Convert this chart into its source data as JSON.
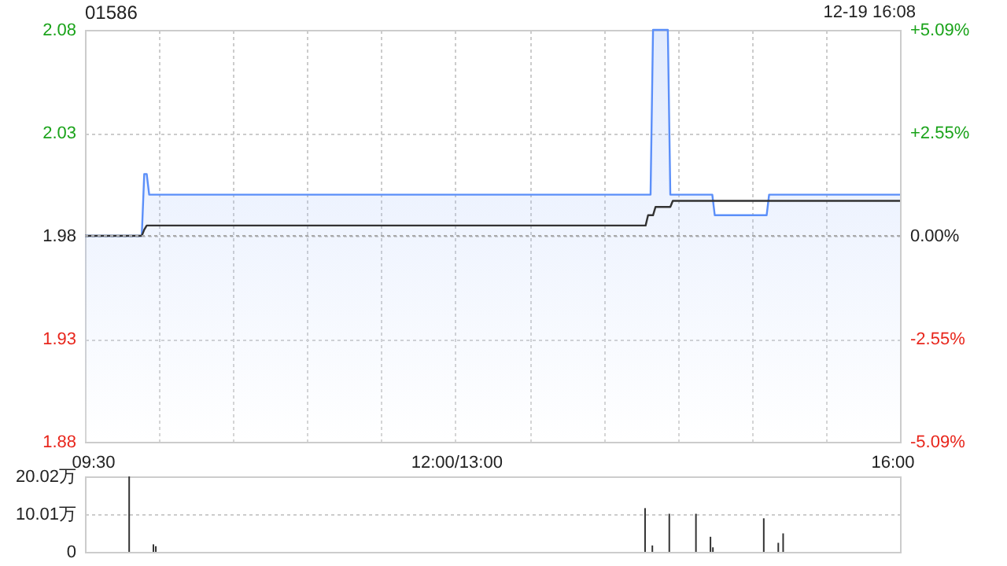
{
  "chart_data": [
    {
      "type": "line",
      "title": "01586",
      "annotations": [
        "12-19 16:08"
      ],
      "tick_labels": "y",
      "categories": [
        null,
        null,
        null,
        null,
        null,
        null,
        null,
        null,
        null,
        null,
        null,
        null,
        null,
        null,
        null,
        null,
        null,
        null,
        null,
        null,
        null,
        null,
        null,
        null,
        null,
        null,
        null,
        null,
        null,
        null,
        null,
        null,
        null,
        null,
        null,
        null,
        null,
        null,
        null,
        null,
        null,
        null,
        null,
        null,
        null,
        null,
        null,
        null,
        null,
        null,
        null,
        null,
        null,
        null,
        null,
        null,
        null,
        null,
        null,
        null,
        null,
        null,
        null,
        null,
        null,
        null,
        null,
        null,
        null,
        null,
        null,
        null,
        null,
        null,
        null,
        null,
        null,
        null,
        null,
        null,
        null,
        null,
        null,
        null,
        null,
        null,
        null,
        null,
        null,
        null,
        null,
        null,
        null,
        null,
        null,
        null,
        null,
        null,
        null,
        null,
        null,
        null,
        null,
        null,
        null,
        null,
        null,
        null,
        null,
        null,
        null,
        null,
        null,
        null,
        null,
        null,
        null,
        null,
        null,
        null,
        null,
        null,
        null,
        null,
        null,
        null,
        null,
        null,
        null,
        null,
        null,
        null,
        null,
        null,
        null,
        null,
        null,
        null,
        null,
        null,
        null,
        null,
        null,
        null,
        null,
        null,
        null,
        null,
        null,
        null,
        null,
        null,
        null,
        null,
        null,
        null,
        null,
        null,
        null,
        null,
        null,
        null,
        null,
        null,
        null,
        null,
        null,
        null,
        null,
        null,
        null,
        null,
        null,
        null,
        null,
        null,
        null,
        null,
        null,
        null,
        null,
        null,
        null,
        null,
        null,
        null,
        null,
        null,
        null,
        null,
        null,
        null,
        null,
        null,
        null,
        null,
        null,
        null,
        null,
        null,
        null,
        null,
        null,
        null,
        null,
        null,
        null,
        null,
        null,
        null,
        null,
        null,
        null,
        null,
        null,
        null,
        null,
        null,
        null,
        null,
        null,
        null,
        null,
        null,
        null,
        null,
        null,
        null,
        null,
        null,
        null,
        null,
        null,
        null,
        null,
        null,
        null,
        null,
        null,
        null,
        null,
        null,
        null,
        null,
        null,
        null,
        null,
        null,
        null,
        null,
        null,
        null,
        null,
        null,
        null,
        null,
        null,
        null,
        null,
        null,
        null,
        null,
        null,
        null,
        null,
        null,
        null,
        null,
        null,
        null,
        null,
        null,
        null,
        null,
        null,
        null,
        null,
        null,
        null,
        null,
        null,
        null,
        null,
        null,
        null,
        null,
        null,
        null,
        null,
        null,
        null,
        null,
        null,
        null,
        null,
        null,
        null,
        null,
        null,
        null,
        null,
        null,
        null,
        null,
        null,
        null,
        null,
        null,
        null,
        null,
        null,
        null,
        null,
        null,
        null,
        null,
        null,
        null,
        null,
        null,
        null,
        null,
        null,
        null,
        null,
        null,
        null,
        null,
        null,
        null,
        null
      ],
      "ylim": [
        1.88,
        2.08
      ],
      "yticks": [
        1.88,
        1.93,
        1.98,
        2.03,
        2.08
      ],
      "y2lim": [
        -5.09,
        5.09
      ],
      "y2ticks": [
        {
          "value": -5.09,
          "label": "-5.09%"
        },
        {
          "value": -2.55,
          "label": "-2.55%"
        },
        {
          "value": 0,
          "label": "0.00%"
        },
        {
          "value": 2.55,
          "label": "+2.55%"
        },
        {
          "value": 5.09,
          "label": "+5.09%"
        }
      ],
      "grid": true,
      "ref_lines": [
        {
          "axis": "y",
          "value": 1.98,
          "line_style": "dotted",
          "color": "#aaaaaa"
        }
      ],
      "series": [
        {
          "type": "area",
          "color": "#5b8ff9",
          "values": [
            1.98,
            1.98,
            1.98,
            1.98,
            1.98,
            1.98,
            1.98,
            1.98,
            1.98,
            1.98,
            1.98,
            1.98,
            1.98,
            1.98,
            1.98,
            1.98,
            1.98,
            1.98,
            1.98,
            1.98,
            1.98,
            1.98,
            1.98,
            1.98,
            2.01,
            2.01,
            2.0,
            2.0,
            2.0,
            2.0,
            2.0,
            2.0,
            2.0,
            2.0,
            2.0,
            2.0,
            2.0,
            2.0,
            2.0,
            2.0,
            2.0,
            2.0,
            2.0,
            2.0,
            2.0,
            2.0,
            2.0,
            2.0,
            2.0,
            2.0,
            2.0,
            2.0,
            2.0,
            2.0,
            2.0,
            2.0,
            2.0,
            2.0,
            2.0,
            2.0,
            2.0,
            2.0,
            2.0,
            2.0,
            2.0,
            2.0,
            2.0,
            2.0,
            2.0,
            2.0,
            2.0,
            2.0,
            2.0,
            2.0,
            2.0,
            2.0,
            2.0,
            2.0,
            2.0,
            2.0,
            2.0,
            2.0,
            2.0,
            2.0,
            2.0,
            2.0,
            2.0,
            2.0,
            2.0,
            2.0,
            2.0,
            2.0,
            2.0,
            2.0,
            2.0,
            2.0,
            2.0,
            2.0,
            2.0,
            2.0,
            2.0,
            2.0,
            2.0,
            2.0,
            2.0,
            2.0,
            2.0,
            2.0,
            2.0,
            2.0,
            2.0,
            2.0,
            2.0,
            2.0,
            2.0,
            2.0,
            2.0,
            2.0,
            2.0,
            2.0,
            2.0,
            2.0,
            2.0,
            2.0,
            2.0,
            2.0,
            2.0,
            2.0,
            2.0,
            2.0,
            2.0,
            2.0,
            2.0,
            2.0,
            2.0,
            2.0,
            2.0,
            2.0,
            2.0,
            2.0,
            2.0,
            2.0,
            2.0,
            2.0,
            2.0,
            2.0,
            2.0,
            2.0,
            2.0,
            2.0,
            2.0,
            2.0,
            2.0,
            2.0,
            2.0,
            2.0,
            2.0,
            2.0,
            2.0,
            2.0,
            2.0,
            2.0,
            2.0,
            2.0,
            2.0,
            2.0,
            2.0,
            2.0,
            2.0,
            2.0,
            2.0,
            2.0,
            2.0,
            2.0,
            2.0,
            2.0,
            2.0,
            2.0,
            2.0,
            2.0,
            2.0,
            2.0,
            2.0,
            2.0,
            2.0,
            2.0,
            2.0,
            2.0,
            2.0,
            2.0,
            2.0,
            2.0,
            2.0,
            2.0,
            2.0,
            2.0,
            2.0,
            2.0,
            2.0,
            2.0,
            2.0,
            2.0,
            2.0,
            2.0,
            2.0,
            2.0,
            2.0,
            2.0,
            2.0,
            2.0,
            2.0,
            2.0,
            2.0,
            2.0,
            2.0,
            2.0,
            2.0,
            2.0,
            2.0,
            2.0,
            2.0,
            2.0,
            2.0,
            2.0,
            2.0,
            2.0,
            2.0,
            2.0,
            2.0,
            2.0,
            2.08,
            2.08,
            2.08,
            2.08,
            2.08,
            2.08,
            2.08,
            2.0,
            2.0,
            2.0,
            2.0,
            2.0,
            2.0,
            2.0,
            2.0,
            2.0,
            2.0,
            2.0,
            2.0,
            2.0,
            2.0,
            2.0,
            2.0,
            2.0,
            2.0,
            1.99,
            1.99,
            1.99,
            1.99,
            1.99,
            1.99,
            1.99,
            1.99,
            1.99,
            1.99,
            1.99,
            1.99,
            1.99,
            1.99,
            1.99,
            1.99,
            1.99,
            1.99,
            1.99,
            1.99,
            1.99,
            1.99,
            2.0,
            2.0,
            2.0,
            2.0,
            2.0,
            2.0,
            2.0,
            2.0,
            2.0,
            2.0,
            2.0,
            2.0,
            2.0,
            2.0,
            2.0,
            2.0,
            2.0,
            2.0,
            2.0,
            2.0,
            2.0,
            2.0,
            2.0,
            2.0,
            2.0,
            2.0,
            2.0,
            2.0,
            2.0,
            2.0,
            2.0,
            2.0,
            2.0,
            2.0,
            2.0,
            2.0,
            2.0,
            2.0,
            2.0,
            2.0,
            2.0,
            2.0,
            2.0,
            2.0,
            2.0,
            2.0,
            2.0,
            2.0,
            2.0,
            2.0,
            2.0,
            2.0,
            2.0,
            2.0
          ]
        },
        {
          "color": "#333333",
          "values": [
            1.98,
            1.98,
            1.98,
            1.98,
            1.98,
            1.98,
            1.98,
            1.98,
            1.98,
            1.98,
            1.98,
            1.98,
            1.98,
            1.98,
            1.98,
            1.98,
            1.98,
            1.98,
            1.98,
            1.98,
            1.98,
            1.98,
            1.98,
            1.98,
            1.983,
            1.985,
            1.985,
            1.985,
            1.985,
            1.985,
            1.985,
            1.985,
            1.985,
            1.985,
            1.985,
            1.985,
            1.985,
            1.985,
            1.985,
            1.985,
            1.985,
            1.985,
            1.985,
            1.985,
            1.985,
            1.985,
            1.985,
            1.985,
            1.985,
            1.985,
            1.985,
            1.985,
            1.985,
            1.985,
            1.985,
            1.985,
            1.985,
            1.985,
            1.985,
            1.985,
            1.985,
            1.985,
            1.985,
            1.985,
            1.985,
            1.985,
            1.985,
            1.985,
            1.985,
            1.985,
            1.985,
            1.985,
            1.985,
            1.985,
            1.985,
            1.985,
            1.985,
            1.985,
            1.985,
            1.985,
            1.985,
            1.985,
            1.985,
            1.985,
            1.985,
            1.985,
            1.985,
            1.985,
            1.985,
            1.985,
            1.985,
            1.985,
            1.985,
            1.985,
            1.985,
            1.985,
            1.985,
            1.985,
            1.985,
            1.985,
            1.985,
            1.985,
            1.985,
            1.985,
            1.985,
            1.985,
            1.985,
            1.985,
            1.985,
            1.985,
            1.985,
            1.985,
            1.985,
            1.985,
            1.985,
            1.985,
            1.985,
            1.985,
            1.985,
            1.985,
            1.985,
            1.985,
            1.985,
            1.985,
            1.985,
            1.985,
            1.985,
            1.985,
            1.985,
            1.985,
            1.985,
            1.985,
            1.985,
            1.985,
            1.985,
            1.985,
            1.985,
            1.985,
            1.985,
            1.985,
            1.985,
            1.985,
            1.985,
            1.985,
            1.985,
            1.985,
            1.985,
            1.985,
            1.985,
            1.985,
            1.985,
            1.985,
            1.985,
            1.985,
            1.985,
            1.985,
            1.985,
            1.985,
            1.985,
            1.985,
            1.985,
            1.985,
            1.985,
            1.985,
            1.985,
            1.985,
            1.985,
            1.985,
            1.985,
            1.985,
            1.985,
            1.985,
            1.985,
            1.985,
            1.985,
            1.985,
            1.985,
            1.985,
            1.985,
            1.985,
            1.985,
            1.985,
            1.985,
            1.985,
            1.985,
            1.985,
            1.985,
            1.985,
            1.985,
            1.985,
            1.985,
            1.985,
            1.985,
            1.985,
            1.985,
            1.985,
            1.985,
            1.985,
            1.985,
            1.985,
            1.985,
            1.985,
            1.985,
            1.985,
            1.985,
            1.985,
            1.985,
            1.985,
            1.985,
            1.985,
            1.985,
            1.985,
            1.985,
            1.985,
            1.985,
            1.985,
            1.985,
            1.985,
            1.985,
            1.985,
            1.985,
            1.985,
            1.985,
            1.985,
            1.985,
            1.985,
            1.985,
            1.985,
            1.99,
            1.99,
            1.99,
            1.994,
            1.994,
            1.994,
            1.994,
            1.994,
            1.994,
            1.994,
            1.997,
            1.997,
            1.997,
            1.997,
            1.997,
            1.997,
            1.997,
            1.997,
            1.997,
            1.997,
            1.997,
            1.997,
            1.997,
            1.997,
            1.997,
            1.997,
            1.997,
            1.997,
            1.997,
            1.997,
            1.997,
            1.997,
            1.997,
            1.997,
            1.997,
            1.997,
            1.997,
            1.997,
            1.997,
            1.997,
            1.997,
            1.997,
            1.997,
            1.997,
            1.997,
            1.997,
            1.997,
            1.997,
            1.997,
            1.997,
            1.997,
            1.997,
            1.997,
            1.997,
            1.997,
            1.997,
            1.997,
            1.997,
            1.997,
            1.997,
            1.997,
            1.997,
            1.997,
            1.997,
            1.997,
            1.997,
            1.997,
            1.997,
            1.997,
            1.997,
            1.997,
            1.997,
            1.997,
            1.997,
            1.997,
            1.997,
            1.997,
            1.997,
            1.997,
            1.997,
            1.997,
            1.997,
            1.997,
            1.997,
            1.997,
            1.997,
            1.997,
            1.997,
            1.997,
            1.997,
            1.997,
            1.997,
            1.997,
            1.997,
            1.997,
            1.997,
            1.997,
            1.997,
            1.997,
            1.997,
            1.997,
            1.997,
            1.997
          ]
        }
      ]
    },
    {
      "type": "bar",
      "grid": "y",
      "categories": [
        "09:30",
        null,
        null,
        null,
        null,
        null,
        null,
        null,
        null,
        null,
        null,
        null,
        null,
        null,
        null,
        null,
        null,
        null,
        null,
        null,
        null,
        null,
        null,
        null,
        null,
        null,
        null,
        null,
        null,
        null,
        null,
        null,
        null,
        null,
        null,
        null,
        null,
        null,
        null,
        null,
        null,
        null,
        null,
        null,
        null,
        null,
        null,
        null,
        null,
        null,
        null,
        null,
        null,
        null,
        null,
        null,
        null,
        null,
        null,
        null,
        null,
        null,
        null,
        null,
        null,
        null,
        null,
        null,
        null,
        null,
        null,
        null,
        null,
        null,
        null,
        null,
        null,
        null,
        null,
        null,
        null,
        null,
        null,
        null,
        null,
        null,
        null,
        null,
        null,
        null,
        null,
        null,
        null,
        null,
        null,
        null,
        null,
        null,
        null,
        null,
        null,
        null,
        null,
        null,
        null,
        null,
        null,
        null,
        null,
        null,
        null,
        null,
        null,
        null,
        null,
        null,
        null,
        null,
        null,
        null,
        null,
        null,
        null,
        null,
        null,
        null,
        null,
        null,
        null,
        null,
        null,
        null,
        null,
        null,
        null,
        null,
        null,
        null,
        null,
        null,
        null,
        null,
        null,
        null,
        null,
        null,
        null,
        null,
        null,
        null,
        "12:00/13:00",
        null,
        null,
        null,
        null,
        null,
        null,
        null,
        null,
        null,
        null,
        null,
        null,
        null,
        null,
        null,
        null,
        null,
        null,
        null,
        null,
        null,
        null,
        null,
        null,
        null,
        null,
        null,
        null,
        null,
        null,
        null,
        null,
        null,
        null,
        null,
        null,
        null,
        null,
        null,
        null,
        null,
        null,
        null,
        null,
        null,
        null,
        null,
        null,
        null,
        null,
        null,
        null,
        null,
        null,
        null,
        null,
        null,
        null,
        null,
        null,
        null,
        null,
        null,
        null,
        null,
        null,
        null,
        null,
        null,
        null,
        null,
        null,
        null,
        null,
        null,
        null,
        null,
        null,
        null,
        null,
        null,
        null,
        null,
        null,
        null,
        null,
        null,
        null,
        null,
        null,
        null,
        null,
        null,
        null,
        null,
        null,
        null,
        null,
        null,
        null,
        null,
        null,
        null,
        null,
        null,
        null,
        null,
        null,
        null,
        null,
        null,
        null,
        null,
        null,
        null,
        null,
        null,
        null,
        null,
        null,
        null,
        null,
        null,
        null,
        null,
        null,
        null,
        null,
        null,
        null,
        null,
        null,
        null,
        null,
        null,
        null,
        null,
        null,
        null,
        null,
        null,
        null,
        null,
        null,
        null,
        null,
        null,
        null,
        null,
        null,
        null,
        null,
        null,
        null,
        null,
        null,
        null,
        null,
        null,
        null,
        null,
        null,
        null,
        null,
        null,
        null,
        null,
        null,
        null,
        null,
        null,
        null,
        null,
        null,
        null,
        null,
        null,
        null,
        null,
        "16:00"
      ],
      "ylim": [
        0,
        20.02
      ],
      "yticks": [
        0,
        {
          "value": 10.01,
          "label": "10.01万"
        },
        {
          "value": 20.02,
          "label": "20.02万"
        }
      ],
      "series": [
        {
          "color": "#333333",
          "values": [
            null,
            null,
            null,
            null,
            null,
            null,
            null,
            null,
            null,
            null,
            null,
            null,
            null,
            null,
            null,
            20.0,
            null,
            null,
            null,
            null,
            null,
            null,
            null,
            null,
            null,
            2.0,
            1.5,
            null,
            null,
            null,
            null,
            null,
            null,
            null,
            null,
            null,
            null,
            null,
            null,
            null,
            null,
            null,
            null,
            null,
            null,
            null,
            null,
            null,
            null,
            null,
            null,
            null,
            null,
            null,
            null,
            null,
            null,
            null,
            null,
            null,
            null,
            null,
            null,
            null,
            null,
            null,
            null,
            null,
            null,
            null,
            null,
            null,
            null,
            null,
            null,
            null,
            null,
            null,
            null,
            null,
            null,
            null,
            null,
            null,
            null,
            null,
            null,
            null,
            null,
            null,
            null,
            null,
            null,
            null,
            null,
            null,
            null,
            null,
            null,
            null,
            null,
            null,
            null,
            null,
            null,
            null,
            null,
            null,
            null,
            null,
            null,
            null,
            null,
            null,
            null,
            null,
            null,
            null,
            null,
            null,
            null,
            null,
            null,
            null,
            null,
            null,
            null,
            null,
            null,
            null,
            null,
            null,
            null,
            null,
            null,
            null,
            null,
            null,
            null,
            null,
            null,
            null,
            null,
            null,
            null,
            null,
            null,
            null,
            null,
            null,
            null,
            null,
            null,
            null,
            null,
            null,
            null,
            null,
            null,
            null,
            null,
            null,
            null,
            null,
            null,
            null,
            null,
            null,
            null,
            null,
            null,
            null,
            null,
            null,
            null,
            null,
            null,
            null,
            null,
            null,
            null,
            null,
            null,
            null,
            null,
            null,
            null,
            null,
            null,
            null,
            null,
            null,
            null,
            null,
            null,
            null,
            null,
            null,
            null,
            null,
            null,
            null,
            null,
            null,
            null,
            null,
            null,
            null,
            null,
            null,
            null,
            null,
            null,
            null,
            null,
            null,
            null,
            null,
            null,
            null,
            null,
            null,
            null,
            null,
            null,
            null,
            null,
            null,
            11.6,
            null,
            null,
            1.7,
            null,
            null,
            null,
            null,
            null,
            null,
            10.1,
            null,
            null,
            null,
            null,
            null,
            null,
            null,
            null,
            null,
            null,
            10.1,
            null,
            null,
            null,
            null,
            null,
            4.0,
            1.2,
            null,
            null,
            null,
            null,
            null,
            null,
            null,
            null,
            null,
            null,
            null,
            null,
            null,
            null,
            null,
            null,
            null,
            null,
            null,
            null,
            8.9,
            null,
            null,
            null,
            null,
            null,
            2.4,
            null,
            4.9,
            null,
            null,
            null,
            null,
            null,
            null,
            null,
            null,
            null,
            null,
            null,
            null,
            null,
            null,
            null,
            null,
            null,
            null,
            null,
            null,
            null,
            null,
            null,
            null,
            null,
            null,
            null,
            null,
            null,
            null,
            null,
            null,
            null,
            null,
            null,
            null,
            null,
            null,
            null,
            null,
            null,
            null,
            null,
            null,
            null
          ]
        }
      ]
    }
  ]
}
